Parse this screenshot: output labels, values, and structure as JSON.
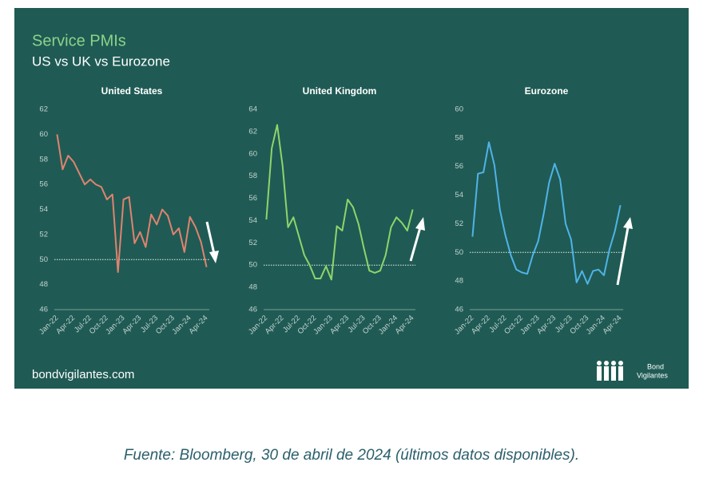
{
  "title": "Service PMIs",
  "subtitle": "US vs UK vs Eurozone",
  "source": "bondvigilantes.com",
  "logo": [
    "Bond",
    "Vigilantes"
  ],
  "caption": "Fuente: Bloomberg, 30 de abril de 2024 (últimos datos disponibles).",
  "chart_data": [
    {
      "type": "line",
      "title": "United States",
      "color": "#e0836f",
      "categories": [
        "Jan-22",
        null,
        null,
        "Apr-22",
        null,
        null,
        "Jul-22",
        null,
        null,
        "Oct-22",
        null,
        null,
        "Jan-23",
        null,
        null,
        "Apr-23",
        null,
        null,
        "Jul-23",
        null,
        null,
        "Oct-23",
        null,
        null,
        "Jan-24",
        null,
        null,
        "Apr-24"
      ],
      "values": [
        60,
        57.2,
        58.3,
        57.8,
        56.9,
        56,
        56.4,
        56,
        55.8,
        54.8,
        55.2,
        49,
        54.8,
        55,
        51.3,
        52.2,
        51,
        53.6,
        52.8,
        54,
        53.5,
        52,
        52.5,
        50.6,
        53.4,
        52.6,
        51.4,
        49.4
      ],
      "ylim": [
        46,
        62
      ],
      "yticks": [
        46,
        48,
        50,
        52,
        54,
        56,
        58,
        60,
        62
      ],
      "reference_line": 50
    },
    {
      "type": "line",
      "title": "United Kingdom",
      "color": "#8fd46b",
      "categories": [
        "Jan-22",
        null,
        null,
        "Apr-22",
        null,
        null,
        "Jul-22",
        null,
        null,
        "Oct-22",
        null,
        null,
        "Jan-23",
        null,
        null,
        "Apr-23",
        null,
        null,
        "Jul-23",
        null,
        null,
        "Oct-23",
        null,
        null,
        "Jan-24",
        null,
        null,
        "Apr-24"
      ],
      "values": [
        54.1,
        60.5,
        62.6,
        58.9,
        53.4,
        54.3,
        52.6,
        50.9,
        50,
        48.8,
        48.8,
        49.9,
        48.7,
        53.5,
        53.1,
        55.9,
        55.2,
        53.7,
        51.5,
        49.5,
        49.3,
        49.5,
        50.9,
        53.4,
        54.3,
        53.8,
        53.1,
        55
      ],
      "ylim": [
        46,
        64
      ],
      "yticks": [
        46,
        48,
        50,
        52,
        54,
        56,
        58,
        60,
        62,
        64
      ],
      "reference_line": 50
    },
    {
      "type": "line",
      "title": "Eurozone",
      "color": "#4fb3e8",
      "categories": [
        "Jan-22",
        null,
        null,
        "Apr-22",
        null,
        null,
        "Jul-22",
        null,
        null,
        "Oct-22",
        null,
        null,
        "Jan-23",
        null,
        null,
        "Apr-23",
        null,
        null,
        "Jul-23",
        null,
        null,
        "Oct-23",
        null,
        null,
        "Jan-24",
        null,
        null,
        "Apr-24"
      ],
      "values": [
        51.1,
        55.5,
        55.6,
        57.7,
        56.1,
        53,
        51.2,
        49.8,
        48.8,
        48.6,
        48.5,
        49.8,
        50.8,
        52.7,
        54.9,
        56.2,
        55.1,
        52,
        50.9,
        47.9,
        48.7,
        47.8,
        48.7,
        48.8,
        48.4,
        50.2,
        51.5,
        53.3
      ],
      "ylim": [
        46,
        60
      ],
      "yticks": [
        46,
        48,
        50,
        52,
        54,
        56,
        58,
        60
      ],
      "reference_line": 50
    }
  ]
}
